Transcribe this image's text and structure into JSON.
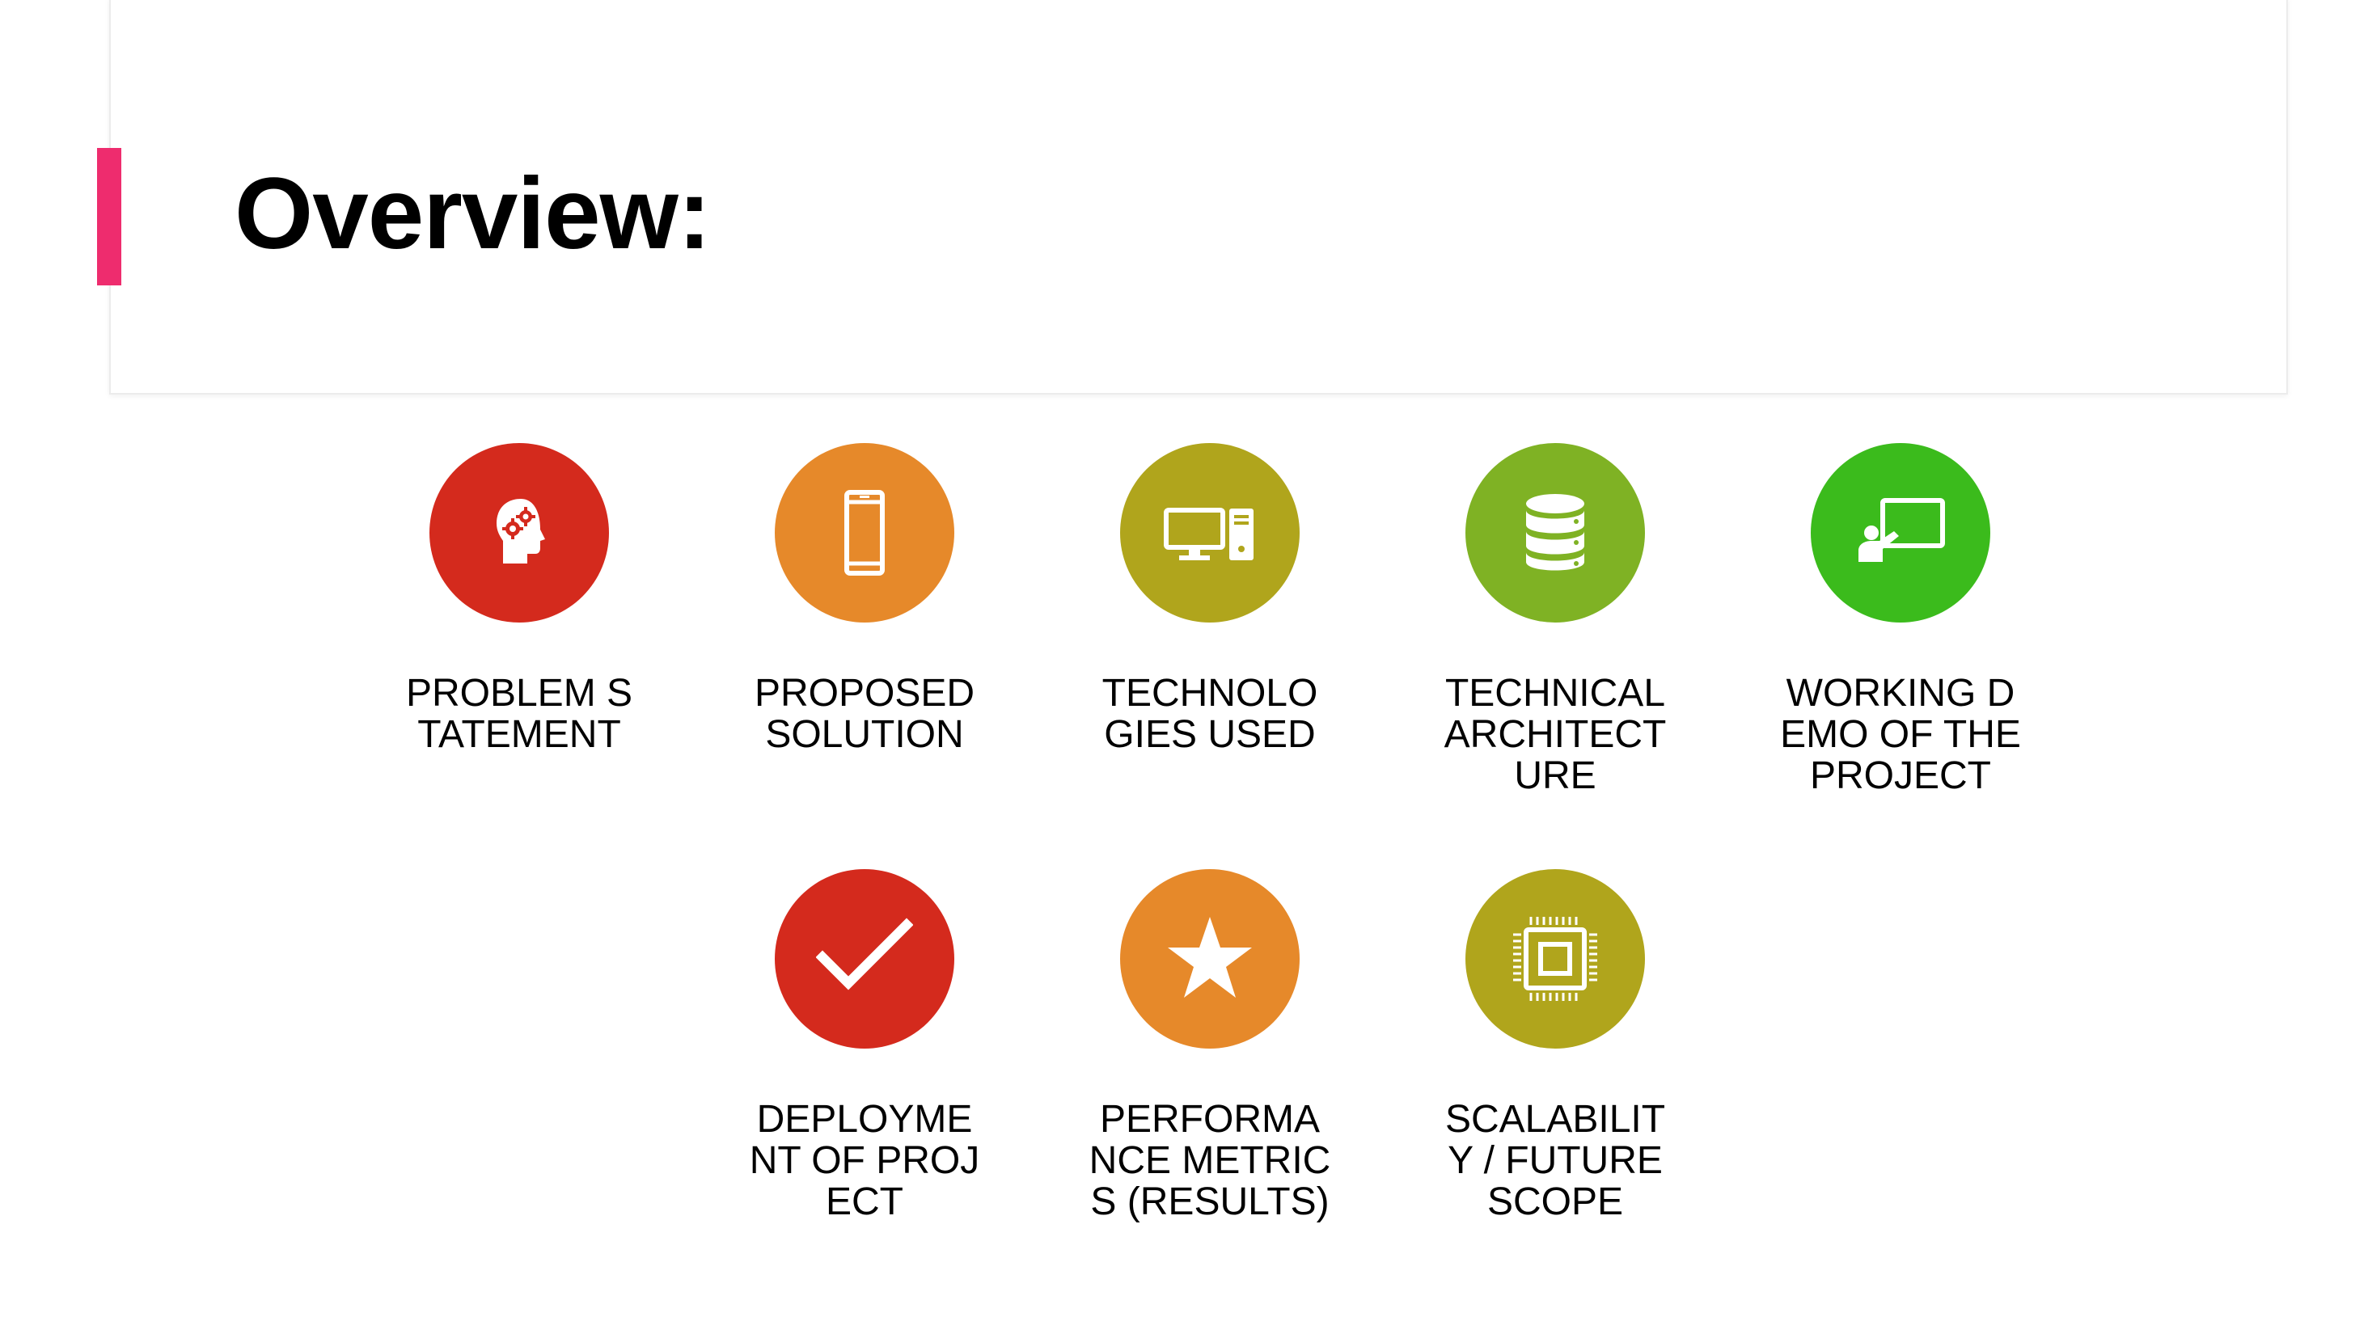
{
  "slide": {
    "title": "Overview:",
    "accent_color": "#ee2c6e"
  },
  "items": [
    {
      "label": "PROBLEM STATEMENT",
      "icon": "head-gears-icon",
      "color": "#d42a1d"
    },
    {
      "label": "PROPOSED SOLUTION",
      "icon": "smartphone-icon",
      "color": "#e6892a"
    },
    {
      "label": "TECHNOLOGIES USED",
      "icon": "desktop-computer-icon",
      "color": "#b0a51c"
    },
    {
      "label": "TECHNICAL ARCHITECTURE",
      "icon": "database-icon",
      "color": "#7fb224"
    },
    {
      "label": "WORKING DEMO OF THE PROJECT",
      "icon": "presentation-icon",
      "color": "#3bbb1c"
    },
    {
      "label": "DEPLOYMENT OF PROJECT",
      "icon": "checkmark-icon",
      "color": "#d42a1d"
    },
    {
      "label": "PERFORMANCE METRICS (RESULTS)",
      "icon": "star-icon",
      "color": "#e6892a"
    },
    {
      "label": "SCALABILITY / FUTURE SCOPE",
      "icon": "cpu-chip-icon",
      "color": "#b0a51c"
    }
  ]
}
